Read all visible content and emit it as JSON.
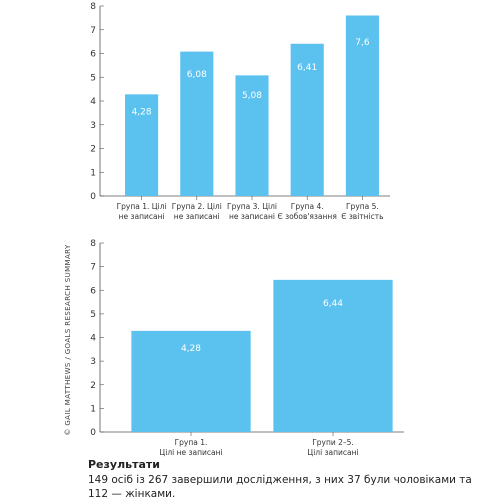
{
  "credit": "© GAIL MATTHEWS / GOALS RESEARCH SUMMARY",
  "accent_color": "#5bc2f0",
  "results": {
    "title": "Результати",
    "text": "149 осіб із 267 завершили дослідження, з них 37 були чоловіками та 112 — жінками."
  },
  "chart_data": [
    {
      "type": "bar",
      "categories": [
        [
          "Група 1. Цілі",
          "не записані"
        ],
        [
          "Група 2. Цілі",
          "не записані"
        ],
        [
          "Група 3. Цілі",
          "не записані"
        ],
        [
          "Група 4.",
          "Є зобов'язання"
        ],
        [
          "Група 5.",
          "Є звітність"
        ]
      ],
      "values": [
        4.28,
        6.08,
        5.08,
        6.41,
        7.6
      ],
      "value_labels": [
        "4,28",
        "6,08",
        "5,08",
        "6,41",
        "7,6"
      ],
      "yticks": [
        "0",
        "1",
        "2",
        "3",
        "4",
        "5",
        "6",
        "7",
        "8"
      ],
      "ylim": [
        0,
        8
      ],
      "grid": false
    },
    {
      "type": "bar",
      "categories": [
        [
          "Група 1.",
          "Цілі не записані"
        ],
        [
          "Групи 2–5.",
          "Цілі записані"
        ]
      ],
      "values": [
        4.28,
        6.44
      ],
      "value_labels": [
        "4,28",
        "6,44"
      ],
      "yticks": [
        "0",
        "1",
        "2",
        "3",
        "4",
        "5",
        "6",
        "7",
        "8"
      ],
      "ylim": [
        0,
        8
      ],
      "grid": false
    }
  ]
}
